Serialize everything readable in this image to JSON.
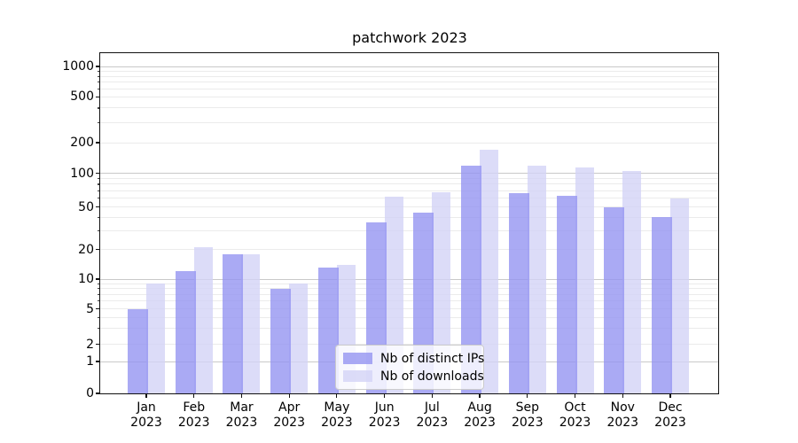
{
  "chart_data": {
    "type": "bar",
    "title": "patchwork 2023",
    "categories": [
      "Jan 2023",
      "Feb 2023",
      "Mar 2023",
      "Apr 2023",
      "May 2023",
      "Jun 2023",
      "Jul 2023",
      "Aug 2023",
      "Sep 2023",
      "Oct 2023",
      "Nov 2023",
      "Dec 2023"
    ],
    "series": [
      {
        "name": "Nb of distinct IPs",
        "color_on_white": "#aaaaf4",
        "fill_rgba": "rgba(149,149,241,0.8)",
        "values": [
          5,
          12,
          18,
          8,
          13,
          36,
          44,
          118,
          66,
          63,
          50,
          40
        ]
      },
      {
        "name": "Nb of downloads",
        "color_on_white": "#dcdcf8",
        "fill_rgba": "rgba(211,211,246,0.8)",
        "values": [
          9,
          21,
          18,
          9,
          14,
          62,
          68,
          170,
          120,
          115,
          105,
          60
        ]
      }
    ],
    "yscale": "symlog",
    "y_tick_values": [
      1000,
      500,
      200,
      100,
      50,
      20,
      10,
      5,
      2,
      1,
      0
    ],
    "y_tick_labels": [
      "1000",
      "500",
      "200",
      "100",
      "50",
      "20",
      "10",
      "5",
      "2",
      "1",
      "0"
    ],
    "ylim": [
      0,
      1400
    ],
    "grid": "both",
    "legend_position": "lower center"
  },
  "colors": {
    "grid_major": "#c9c9c9",
    "grid_minor": "#ebebeb",
    "spine": "#111111",
    "text": "#000000",
    "background": "#ffffff"
  }
}
